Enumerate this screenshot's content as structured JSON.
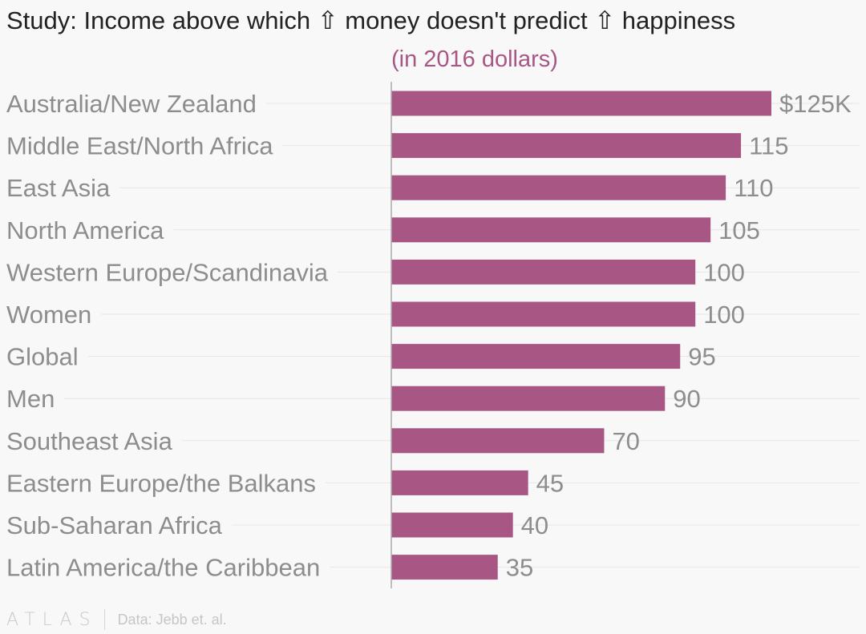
{
  "colors": {
    "bar": "#a85785",
    "accent": "#a85785",
    "label": "#8d8d8d",
    "value": "#8d8d8d",
    "gridline": "#e6e6e6",
    "axis": "#aaaaaa",
    "title": "#222222"
  },
  "chart_data": {
    "type": "bar",
    "orientation": "horizontal",
    "title": "Study: Income above which ⇧ money doesn't predict ⇧ happiness",
    "subtitle": "(in 2016 dollars)",
    "categories": [
      "Australia/New Zealand",
      "Middle East/North Africa",
      "East Asia",
      "North America",
      "Western Europe/Scandinavia",
      "Women",
      "Global",
      "Men",
      "Southeast Asia",
      "Eastern Europe/the Balkans",
      "Sub-Saharan Africa",
      "Latin America/the Caribbean"
    ],
    "values": [
      125,
      115,
      110,
      105,
      100,
      100,
      95,
      90,
      70,
      45,
      40,
      35
    ],
    "value_labels": [
      "$125K",
      "115",
      "110",
      "105",
      "100",
      "100",
      "95",
      "90",
      "70",
      "45",
      "40",
      "35"
    ],
    "xlim": [
      0,
      125
    ],
    "grid": true,
    "legend": "none"
  },
  "footer": {
    "brand": "ATLAS",
    "source": "Data: Jebb et. al."
  }
}
